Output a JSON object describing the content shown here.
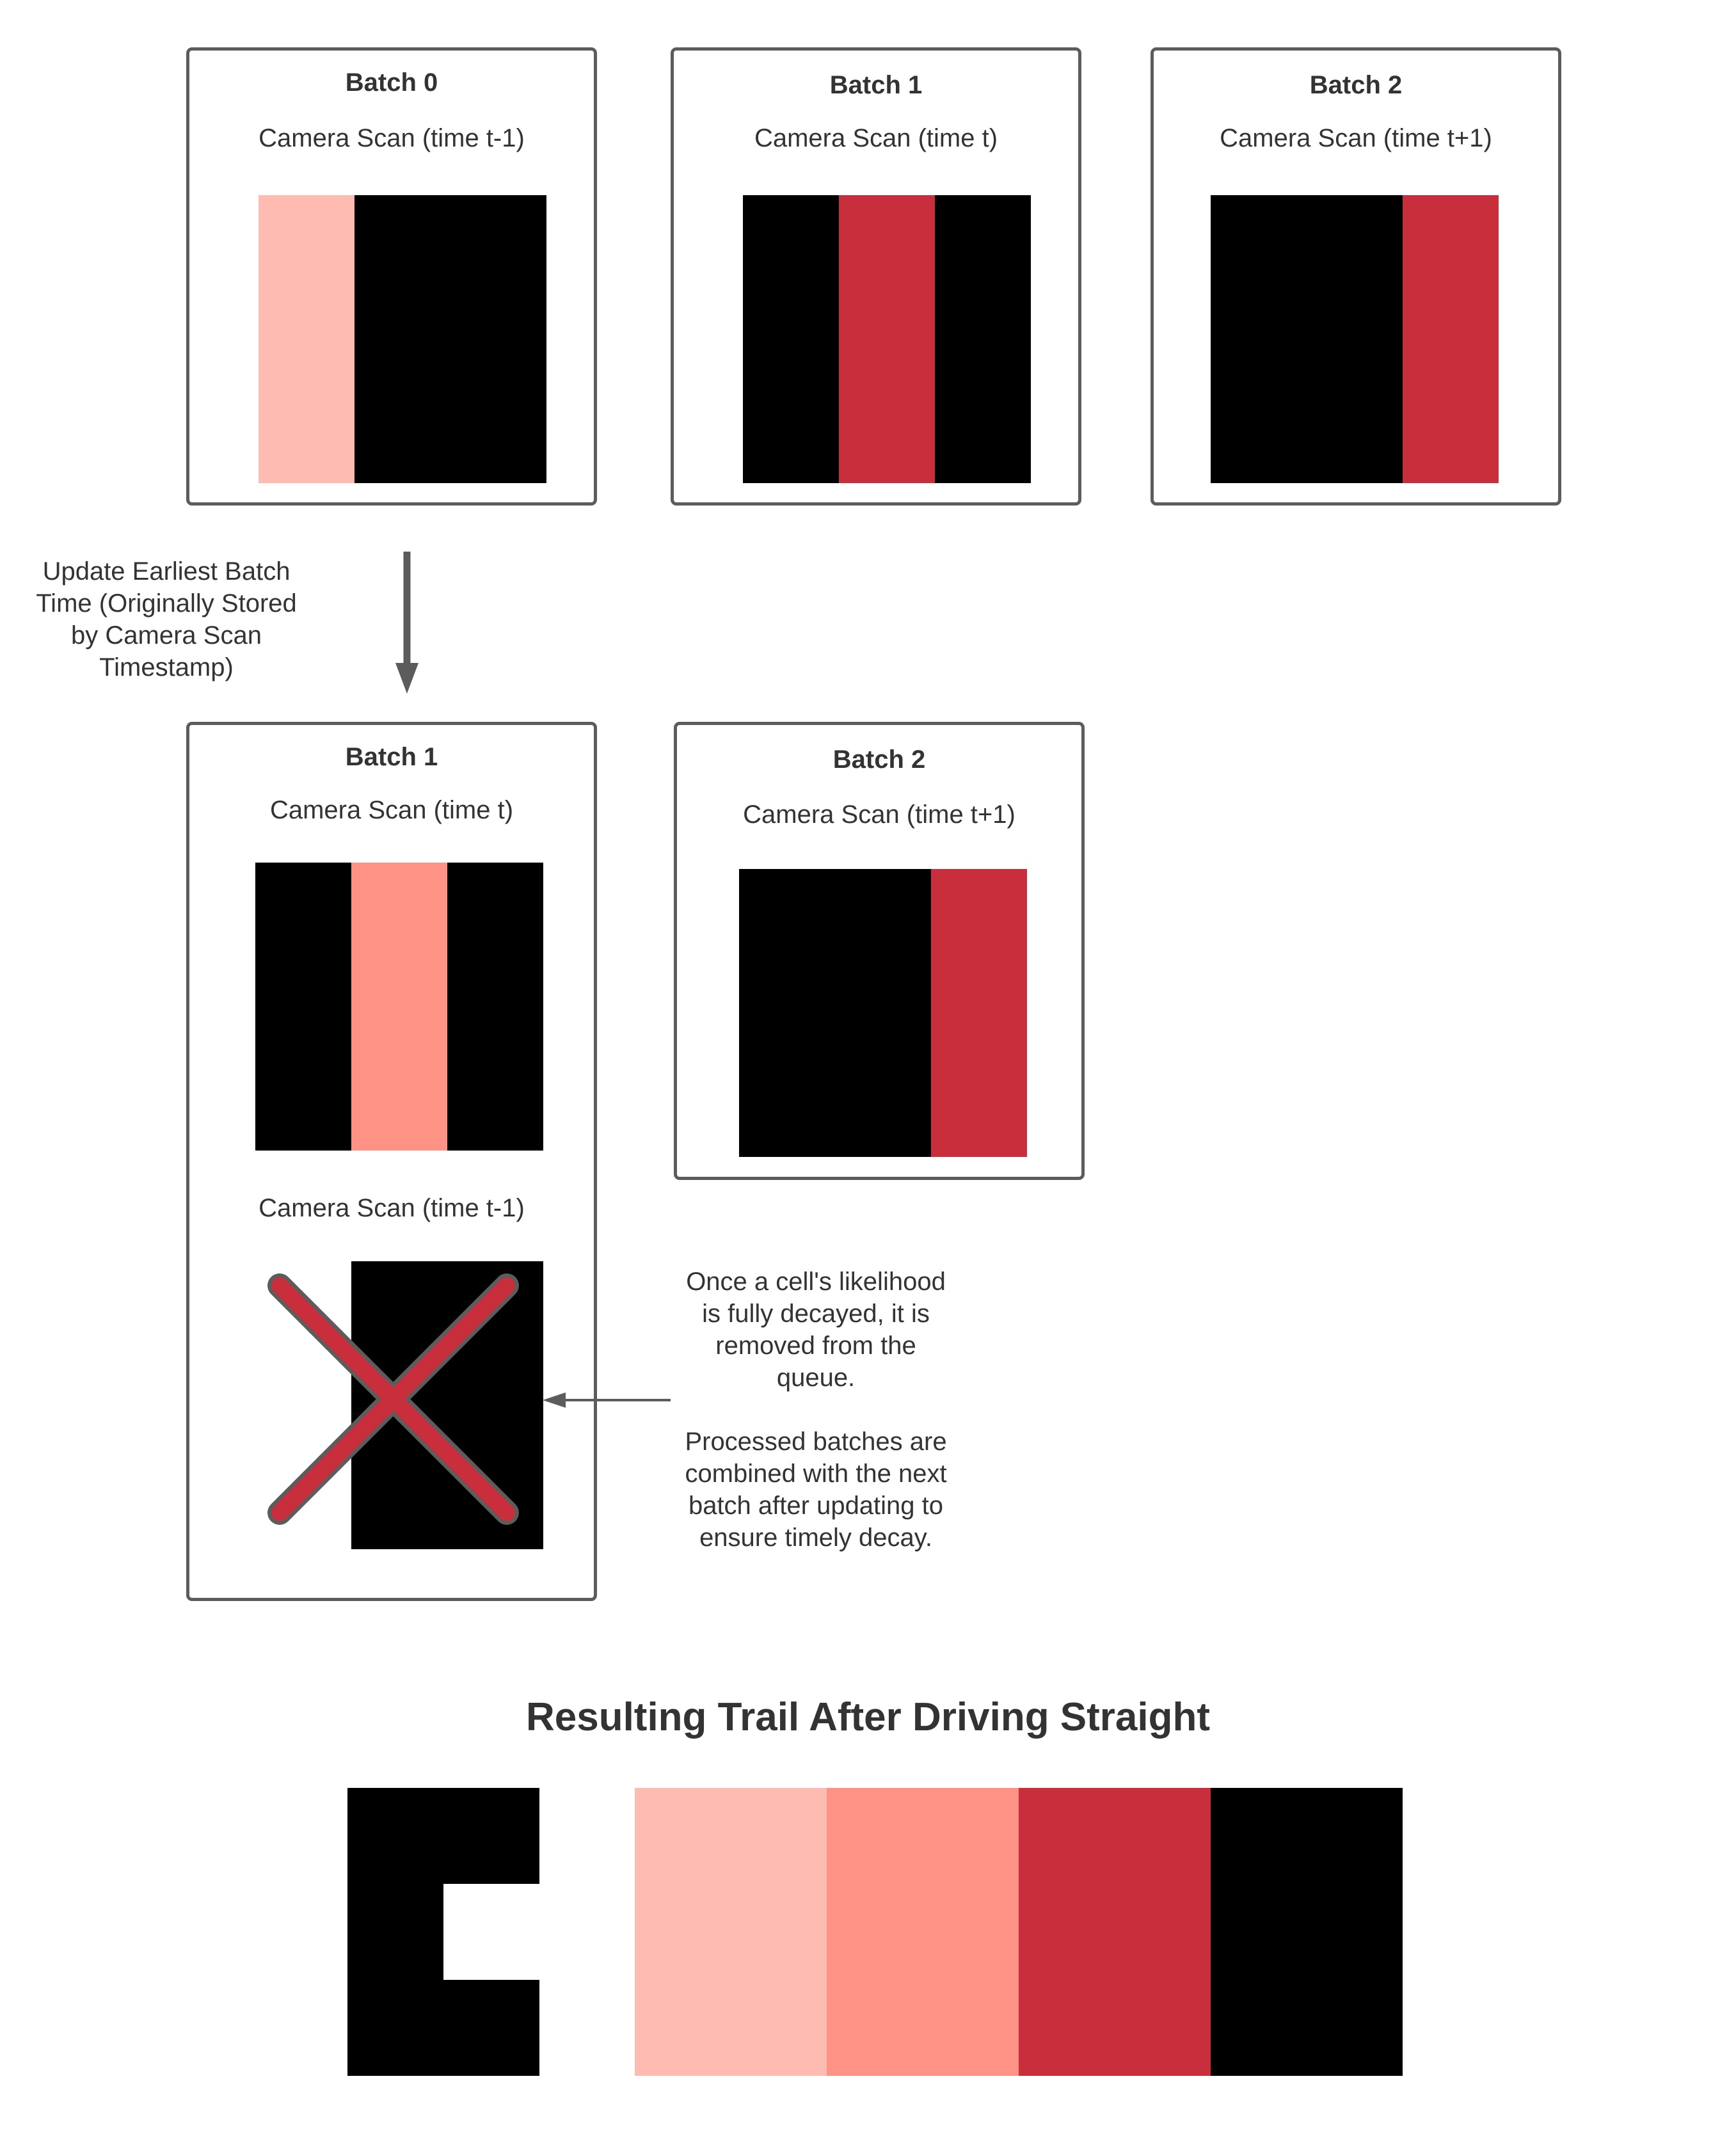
{
  "colors": {
    "border": "#5c5c5c",
    "black": "#000000",
    "red": "#c82e3c",
    "salmon": "#fe9385",
    "pink": "#fdbbb2",
    "text": "#333333"
  },
  "top_row": [
    {
      "title": "Batch 0",
      "caption": "Camera Scan (time t-1)",
      "cells": [
        "pink",
        "black",
        "black"
      ]
    },
    {
      "title": "Batch 1",
      "caption": "Camera Scan (time t)",
      "cells": [
        "black",
        "red",
        "black"
      ]
    },
    {
      "title": "Batch 2",
      "caption": "Camera Scan (time t+1)",
      "cells": [
        "black",
        "black",
        "red"
      ]
    }
  ],
  "update_note": [
    "Update Earliest Batch",
    "Time (Originally Stored",
    "by Camera Scan",
    "Timestamp)"
  ],
  "second_row": {
    "batch1": {
      "title": "Batch 1",
      "caption_current": "Camera Scan (time t)",
      "cells_current": [
        "black",
        "salmon",
        "black"
      ],
      "caption_removed": "Camera Scan (time t-1)",
      "cells_removed": [
        "white",
        "black",
        "black"
      ],
      "removed_mark": "x-mark-icon"
    },
    "batch2": {
      "title": "Batch 2",
      "caption": "Camera Scan (time t+1)",
      "cells": [
        "black",
        "black",
        "red"
      ]
    }
  },
  "decay_note": {
    "paragraph1": [
      "Once a cell's likelihood",
      "is fully decayed, it  is",
      "removed from the",
      "queue."
    ],
    "paragraph2": [
      "Processed batches are",
      "combined with the next",
      "batch after updating to",
      "ensure timely decay."
    ]
  },
  "result": {
    "title": "Resulting Trail After Driving Straight",
    "trail_cells": [
      "pink",
      "salmon",
      "red",
      "black"
    ]
  }
}
